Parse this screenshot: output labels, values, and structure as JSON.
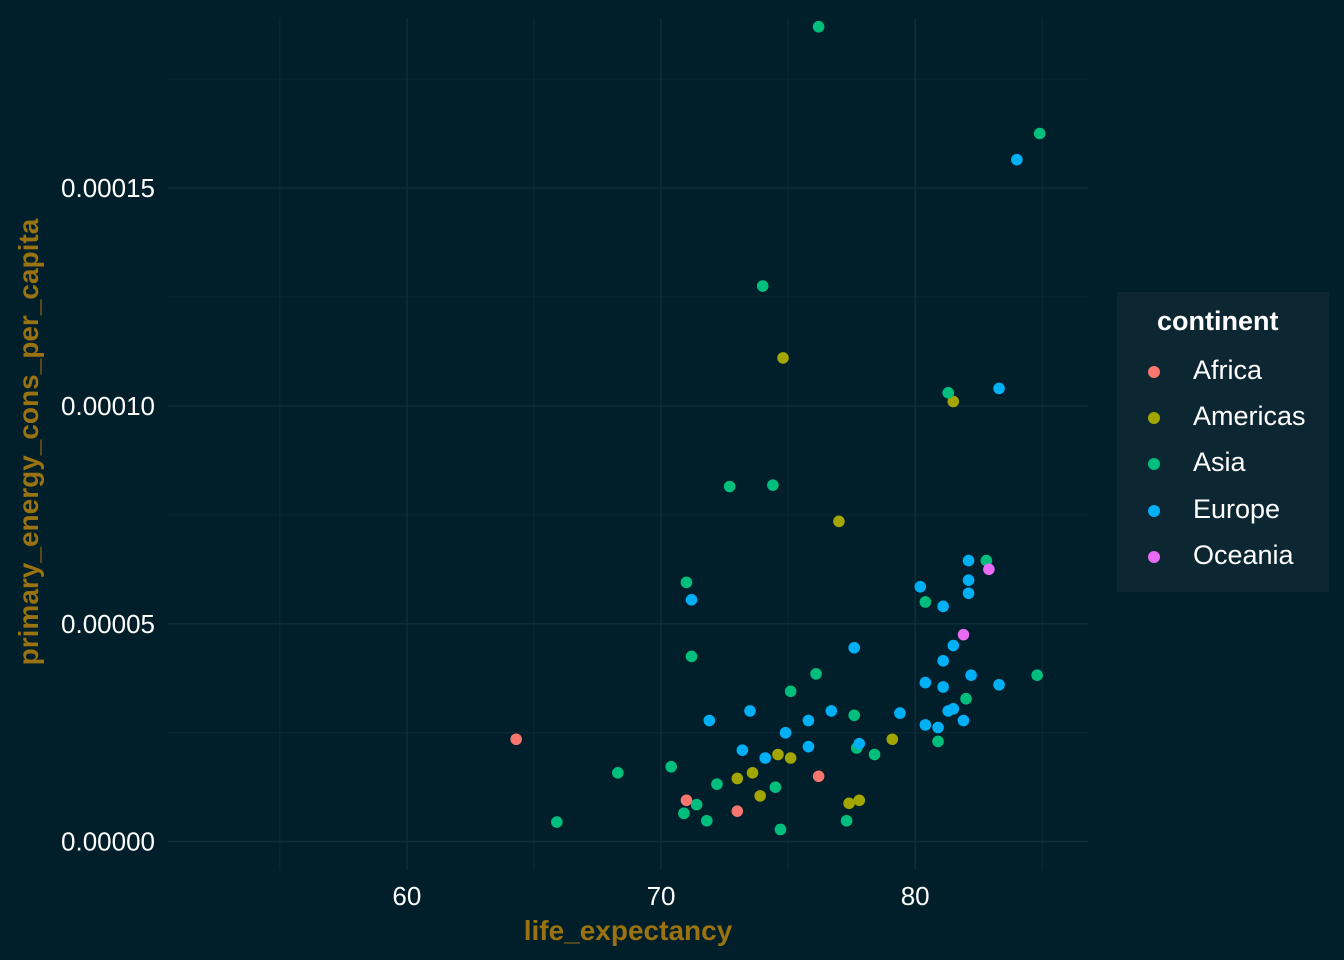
{
  "chart_data": {
    "type": "scatter",
    "xlabel": "life_expectancy",
    "ylabel": "primary_energy_cons_per_capita",
    "xlim": [
      50.6,
      86.8
    ],
    "ylim": [
      -6.5e-06,
      0.000189
    ],
    "xticks": [
      60,
      70,
      80
    ],
    "yticks": [
      0.0,
      5e-05,
      0.0001,
      0.00015
    ],
    "ytick_labels": [
      "0.00000",
      "0.00005",
      "0.00010",
      "0.00015"
    ],
    "grid": true,
    "legend": {
      "title": "continent",
      "placement": "right"
    },
    "series": [
      {
        "name": "Africa",
        "color": "#F8766D",
        "points": [
          [
            64.3,
            2.35e-05
          ],
          [
            71.0,
            9.5e-06
          ],
          [
            73.0,
            7e-06
          ],
          [
            76.2,
            1.5e-05
          ]
        ]
      },
      {
        "name": "Americas",
        "color": "#A3A500",
        "points": [
          [
            74.8,
            0.000111
          ],
          [
            81.5,
            0.000101
          ],
          [
            77.0,
            7.35e-05
          ],
          [
            73.0,
            1.45e-05
          ],
          [
            73.6,
            1.58e-05
          ],
          [
            73.9,
            1.05e-05
          ],
          [
            74.6,
            2e-05
          ],
          [
            75.1,
            1.92e-05
          ],
          [
            77.4,
            8.8e-06
          ],
          [
            77.8,
            9.5e-06
          ],
          [
            79.1,
            2.35e-05
          ]
        ]
      },
      {
        "name": "Asia",
        "color": "#00BF7D",
        "points": [
          [
            76.2,
            0.000187
          ],
          [
            84.9,
            0.0001625
          ],
          [
            74.0,
            0.0001275
          ],
          [
            81.3,
            0.000103
          ],
          [
            72.7,
            8.15e-05
          ],
          [
            74.4,
            8.18e-05
          ],
          [
            71.0,
            5.95e-05
          ],
          [
            82.8,
            6.45e-05
          ],
          [
            80.4,
            5.5e-05
          ],
          [
            71.2,
            4.25e-05
          ],
          [
            76.1,
            3.85e-05
          ],
          [
            84.8,
            3.82e-05
          ],
          [
            75.1,
            3.45e-05
          ],
          [
            82.0,
            3.28e-05
          ],
          [
            77.6,
            2.9e-05
          ],
          [
            77.7,
            2.15e-05
          ],
          [
            78.4,
            2e-05
          ],
          [
            80.9,
            2.3e-05
          ],
          [
            68.3,
            1.58e-05
          ],
          [
            70.4,
            1.72e-05
          ],
          [
            72.2,
            1.32e-05
          ],
          [
            74.5,
            1.25e-05
          ],
          [
            71.4,
            8.5e-06
          ],
          [
            70.9,
            6.5e-06
          ],
          [
            71.8,
            4.8e-06
          ],
          [
            65.9,
            4.5e-06
          ],
          [
            74.7,
            2.8e-06
          ],
          [
            77.3,
            4.8e-06
          ]
        ]
      },
      {
        "name": "Europe",
        "color": "#00B0F6",
        "points": [
          [
            84.0,
            0.0001565
          ],
          [
            83.3,
            0.000104
          ],
          [
            82.1,
            6.45e-05
          ],
          [
            82.1,
            6e-05
          ],
          [
            80.2,
            5.85e-05
          ],
          [
            82.1,
            5.7e-05
          ],
          [
            81.1,
            5.4e-05
          ],
          [
            71.2,
            5.55e-05
          ],
          [
            77.6,
            4.45e-05
          ],
          [
            81.5,
            4.5e-05
          ],
          [
            81.1,
            4.15e-05
          ],
          [
            82.2,
            3.82e-05
          ],
          [
            80.4,
            3.65e-05
          ],
          [
            81.1,
            3.55e-05
          ],
          [
            83.3,
            3.6e-05
          ],
          [
            79.4,
            2.95e-05
          ],
          [
            81.3,
            3e-05
          ],
          [
            81.5,
            3.05e-05
          ],
          [
            81.9,
            2.78e-05
          ],
          [
            80.4,
            2.68e-05
          ],
          [
            80.9,
            2.62e-05
          ],
          [
            71.9,
            2.78e-05
          ],
          [
            73.5,
            3e-05
          ],
          [
            75.8,
            2.78e-05
          ],
          [
            76.7,
            3e-05
          ],
          [
            74.9,
            2.5e-05
          ],
          [
            75.8,
            2.18e-05
          ],
          [
            77.8,
            2.25e-05
          ],
          [
            73.2,
            2.1e-05
          ],
          [
            74.1,
            1.92e-05
          ]
        ]
      },
      {
        "name": "Oceania",
        "color": "#E76BF3",
        "points": [
          [
            82.9,
            6.25e-05
          ],
          [
            81.9,
            4.75e-05
          ]
        ]
      }
    ]
  }
}
